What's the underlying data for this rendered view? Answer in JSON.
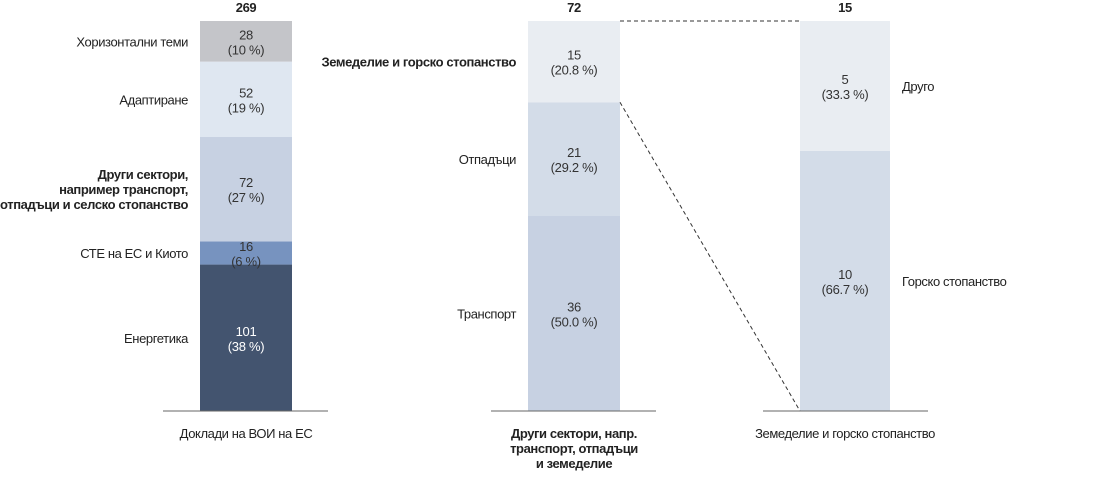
{
  "chart_data": [
    {
      "type": "bar",
      "stacked": true,
      "title": "",
      "xlabel": "Доклади на ВОИ на ЕС",
      "total": "269",
      "categories": [
        "Енергетика",
        "СТЕ на ЕС и Киото",
        "Други сектори, например транспорт, отпадъци и селско стопанство",
        "Адаптиране",
        "Хоризонтални теми"
      ],
      "label_lines": [
        [
          "Енергетика"
        ],
        [
          "СТЕ на ЕС и Киото"
        ],
        [
          "Други сектори,",
          "например транспорт,",
          "отпадъци и селско стопанство"
        ],
        [
          "Адаптиране"
        ],
        [
          "Хоризонтални теми"
        ]
      ],
      "values": [
        101,
        16,
        72,
        52,
        28
      ],
      "percent_labels": [
        "(38 %)",
        "(6 %)",
        "(27 %)",
        "(19 %)",
        "(10 %)"
      ],
      "colors": [
        "#43546f",
        "#7793bf",
        "#c7d1e2",
        "#dfe7f1",
        "#c4c5c9"
      ],
      "value_text_colors": [
        "#ffffff",
        "#333333",
        "#333333",
        "#333333",
        "#333333"
      ]
    },
    {
      "type": "bar",
      "stacked": true,
      "title": "",
      "xlabel_lines": [
        "Други сектори, напр.",
        "транспорт, отпадъци",
        "и земеделие"
      ],
      "total": "72",
      "categories": [
        "Транспорт",
        "Отпадъци",
        "Земеделие и горско стопанство"
      ],
      "label_lines": [
        [
          "Транспорт"
        ],
        [
          "Отпадъци"
        ],
        [
          "Земеделие и горско стопанство"
        ]
      ],
      "values": [
        36,
        21,
        15
      ],
      "percent_labels": [
        "(50.0 %)",
        "(29.2 %)",
        "(20.8 %)"
      ],
      "colors": [
        "#c7d1e2",
        "#d3dce8",
        "#e9edf2"
      ],
      "value_text_colors": [
        "#333333",
        "#333333",
        "#333333"
      ]
    },
    {
      "type": "bar",
      "stacked": true,
      "title": "",
      "xlabel": "Земеделие и горско стопанство",
      "total": "15",
      "categories": [
        "Горско стопанство",
        "Друго"
      ],
      "label_lines": [
        [
          "Горско стопанство"
        ],
        [
          "Друго"
        ]
      ],
      "values": [
        10,
        5
      ],
      "percent_labels": [
        "(66.7 %)",
        "(33.3 %)"
      ],
      "colors": [
        "#d3dce8",
        "#e9edf2"
      ],
      "value_text_colors": [
        "#333333",
        "#333333"
      ]
    }
  ]
}
